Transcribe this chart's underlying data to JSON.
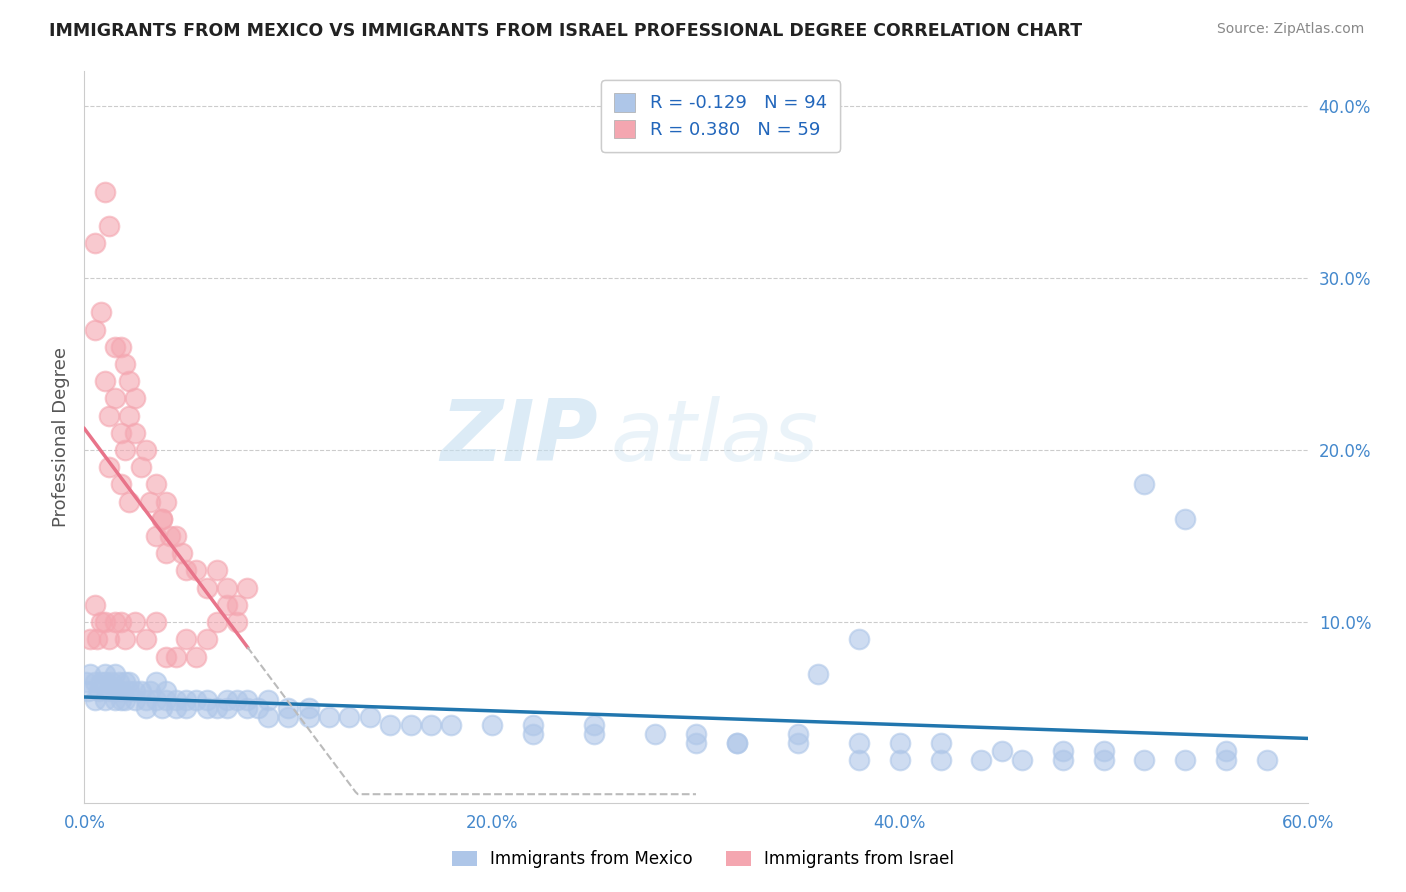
{
  "title": "IMMIGRANTS FROM MEXICO VS IMMIGRANTS FROM ISRAEL PROFESSIONAL DEGREE CORRELATION CHART",
  "source": "Source: ZipAtlas.com",
  "ylabel": "Professional Degree",
  "xlabel": "",
  "xlim": [
    0.0,
    0.6
  ],
  "ylim": [
    -0.005,
    0.42
  ],
  "xtick_labels": [
    "0.0%",
    "20.0%",
    "40.0%",
    "60.0%"
  ],
  "xtick_vals": [
    0.0,
    0.2,
    0.4,
    0.6
  ],
  "ytick_labels": [
    "10.0%",
    "20.0%",
    "30.0%",
    "40.0%"
  ],
  "ytick_vals": [
    0.1,
    0.2,
    0.3,
    0.4
  ],
  "mexico_color": "#aec6e8",
  "israel_color": "#f4a6b0",
  "mexico_line_color": "#2176ae",
  "israel_trendline_color": "#e8748a",
  "israel_trendline_dashed_color": "#bbbbbb",
  "R_mexico": -0.129,
  "N_mexico": 94,
  "R_israel": 0.38,
  "N_israel": 59,
  "watermark_zip": "ZIP",
  "watermark_atlas": "atlas",
  "background_color": "#ffffff",
  "grid_color": "#cccccc",
  "israel_scatter_x": [
    0.005,
    0.01,
    0.005,
    0.012,
    0.008,
    0.015,
    0.01,
    0.012,
    0.018,
    0.02,
    0.015,
    0.018,
    0.022,
    0.025,
    0.02,
    0.022,
    0.012,
    0.025,
    0.018,
    0.03,
    0.022,
    0.028,
    0.032,
    0.035,
    0.038,
    0.04,
    0.035,
    0.038,
    0.042,
    0.04,
    0.045,
    0.048,
    0.05,
    0.055,
    0.06,
    0.065,
    0.07,
    0.075,
    0.08,
    0.075,
    0.07,
    0.065,
    0.005,
    0.008,
    0.003,
    0.006,
    0.01,
    0.015,
    0.012,
    0.018,
    0.02,
    0.025,
    0.03,
    0.035,
    0.04,
    0.045,
    0.05,
    0.055,
    0.06
  ],
  "israel_scatter_y": [
    0.32,
    0.35,
    0.27,
    0.33,
    0.28,
    0.26,
    0.24,
    0.22,
    0.26,
    0.25,
    0.23,
    0.21,
    0.24,
    0.23,
    0.2,
    0.22,
    0.19,
    0.21,
    0.18,
    0.2,
    0.17,
    0.19,
    0.17,
    0.18,
    0.16,
    0.17,
    0.15,
    0.16,
    0.15,
    0.14,
    0.15,
    0.14,
    0.13,
    0.13,
    0.12,
    0.13,
    0.12,
    0.11,
    0.12,
    0.1,
    0.11,
    0.1,
    0.11,
    0.1,
    0.09,
    0.09,
    0.1,
    0.1,
    0.09,
    0.1,
    0.09,
    0.1,
    0.09,
    0.1,
    0.08,
    0.08,
    0.09,
    0.08,
    0.09
  ],
  "mexico_scatter_x": [
    0.001,
    0.002,
    0.003,
    0.005,
    0.005,
    0.007,
    0.008,
    0.01,
    0.01,
    0.01,
    0.012,
    0.013,
    0.015,
    0.015,
    0.015,
    0.017,
    0.018,
    0.018,
    0.02,
    0.02,
    0.022,
    0.022,
    0.025,
    0.025,
    0.028,
    0.03,
    0.03,
    0.032,
    0.035,
    0.035,
    0.038,
    0.04,
    0.04,
    0.045,
    0.045,
    0.05,
    0.05,
    0.055,
    0.06,
    0.06,
    0.065,
    0.07,
    0.07,
    0.075,
    0.08,
    0.08,
    0.085,
    0.09,
    0.09,
    0.1,
    0.1,
    0.11,
    0.11,
    0.12,
    0.13,
    0.14,
    0.15,
    0.16,
    0.17,
    0.18,
    0.2,
    0.22,
    0.22,
    0.25,
    0.25,
    0.28,
    0.3,
    0.32,
    0.35,
    0.38,
    0.4,
    0.42,
    0.45,
    0.48,
    0.5,
    0.52,
    0.54,
    0.56,
    0.38,
    0.4,
    0.42,
    0.44,
    0.46,
    0.48,
    0.5,
    0.52,
    0.54,
    0.56,
    0.58,
    0.3,
    0.32,
    0.35,
    0.38,
    0.36
  ],
  "mexico_scatter_y": [
    0.065,
    0.06,
    0.07,
    0.065,
    0.055,
    0.06,
    0.065,
    0.065,
    0.055,
    0.07,
    0.06,
    0.065,
    0.06,
    0.055,
    0.07,
    0.065,
    0.055,
    0.06,
    0.065,
    0.055,
    0.06,
    0.065,
    0.06,
    0.055,
    0.06,
    0.05,
    0.055,
    0.06,
    0.055,
    0.065,
    0.05,
    0.055,
    0.06,
    0.055,
    0.05,
    0.055,
    0.05,
    0.055,
    0.05,
    0.055,
    0.05,
    0.055,
    0.05,
    0.055,
    0.05,
    0.055,
    0.05,
    0.045,
    0.055,
    0.05,
    0.045,
    0.05,
    0.045,
    0.045,
    0.045,
    0.045,
    0.04,
    0.04,
    0.04,
    0.04,
    0.04,
    0.04,
    0.035,
    0.035,
    0.04,
    0.035,
    0.035,
    0.03,
    0.035,
    0.03,
    0.03,
    0.03,
    0.025,
    0.025,
    0.025,
    0.18,
    0.16,
    0.025,
    0.02,
    0.02,
    0.02,
    0.02,
    0.02,
    0.02,
    0.02,
    0.02,
    0.02,
    0.02,
    0.02,
    0.03,
    0.03,
    0.03,
    0.09,
    0.07
  ]
}
